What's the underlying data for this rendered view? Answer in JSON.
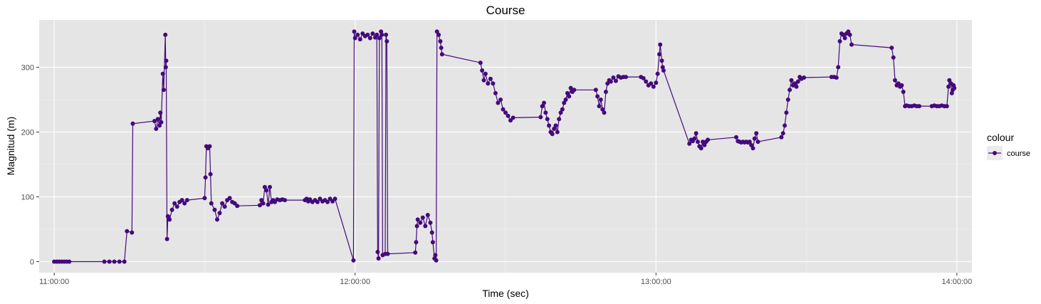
{
  "chart_data": {
    "type": "line",
    "title": "Course",
    "xlabel": "Time (sec)",
    "ylabel": "Magnitud (m)",
    "x_ticks": [
      "11:00:00",
      "12:00:00",
      "13:00:00",
      "14:00:00"
    ],
    "y_ticks": [
      0,
      100,
      200,
      300
    ],
    "xlim": [
      "10:57:00",
      "14:03:00"
    ],
    "ylim": [
      -17,
      373
    ],
    "grid": true,
    "legend": {
      "title": "colour",
      "position": "right"
    },
    "series": [
      {
        "name": "course",
        "color": "#440a7b",
        "points": [
          [
            "11:00:00",
            0
          ],
          [
            "11:00:30",
            0
          ],
          [
            "11:01:00",
            0
          ],
          [
            "11:01:30",
            0
          ],
          [
            "11:02:00",
            0
          ],
          [
            "11:02:30",
            0
          ],
          [
            "11:03:00",
            0
          ],
          [
            "11:10:00",
            0
          ],
          [
            "11:11:00",
            0
          ],
          [
            "11:12:00",
            0
          ],
          [
            "11:13:00",
            0
          ],
          [
            "11:14:00",
            0
          ],
          [
            "11:14:30",
            47
          ],
          [
            "11:15:30",
            45
          ],
          [
            "11:15:40",
            213
          ],
          [
            "11:20:00",
            217
          ],
          [
            "11:20:20",
            205
          ],
          [
            "11:20:40",
            220
          ],
          [
            "11:21:00",
            210
          ],
          [
            "11:21:10",
            230
          ],
          [
            "11:21:20",
            215
          ],
          [
            "11:21:40",
            290
          ],
          [
            "11:21:50",
            265
          ],
          [
            "11:22:10",
            350
          ],
          [
            "11:22:15",
            300
          ],
          [
            "11:22:20",
            310
          ],
          [
            "11:22:30",
            35
          ],
          [
            "11:22:40",
            70
          ],
          [
            "11:23:00",
            65
          ],
          [
            "11:23:30",
            80
          ],
          [
            "11:24:00",
            90
          ],
          [
            "11:24:30",
            85
          ],
          [
            "11:25:00",
            92
          ],
          [
            "11:25:30",
            95
          ],
          [
            "11:26:00",
            90
          ],
          [
            "11:26:30",
            95
          ],
          [
            "11:30:00",
            98
          ],
          [
            "11:30:10",
            130
          ],
          [
            "11:30:20",
            178
          ],
          [
            "11:30:40",
            175
          ],
          [
            "11:31:00",
            178
          ],
          [
            "11:31:10",
            135
          ],
          [
            "11:31:20",
            90
          ],
          [
            "11:32:00",
            80
          ],
          [
            "11:32:30",
            65
          ],
          [
            "11:33:00",
            75
          ],
          [
            "11:33:30",
            90
          ],
          [
            "11:34:00",
            85
          ],
          [
            "11:34:30",
            95
          ],
          [
            "11:35:00",
            98
          ],
          [
            "11:35:30",
            92
          ],
          [
            "11:36:00",
            90
          ],
          [
            "11:36:30",
            86
          ],
          [
            "11:41:00",
            87
          ],
          [
            "11:41:20",
            95
          ],
          [
            "11:41:40",
            90
          ],
          [
            "11:42:00",
            115
          ],
          [
            "11:42:20",
            110
          ],
          [
            "11:42:40",
            88
          ],
          [
            "11:43:00",
            115
          ],
          [
            "11:43:20",
            92
          ],
          [
            "11:43:40",
            95
          ],
          [
            "11:44:00",
            92
          ],
          [
            "11:44:30",
            96
          ],
          [
            "11:45:00",
            95
          ],
          [
            "11:45:30",
            96
          ],
          [
            "11:46:00",
            95
          ],
          [
            "11:50:00",
            95
          ],
          [
            "11:50:20",
            97
          ],
          [
            "11:50:40",
            93
          ],
          [
            "11:51:00",
            96
          ],
          [
            "11:51:30",
            92
          ],
          [
            "11:52:00",
            95
          ],
          [
            "11:52:30",
            92
          ],
          [
            "11:53:00",
            97
          ],
          [
            "11:53:30",
            93
          ],
          [
            "11:54:00",
            95
          ],
          [
            "11:54:30",
            92
          ],
          [
            "11:55:00",
            97
          ],
          [
            "11:55:30",
            93
          ],
          [
            "11:56:00",
            97
          ],
          [
            "11:59:40",
            2
          ],
          [
            "11:59:50",
            355
          ],
          [
            "12:00:00",
            345
          ],
          [
            "12:00:30",
            350
          ],
          [
            "12:01:00",
            343
          ],
          [
            "12:01:30",
            352
          ],
          [
            "12:02:00",
            348
          ],
          [
            "12:02:30",
            350
          ],
          [
            "12:03:00",
            345
          ],
          [
            "12:03:30",
            352
          ],
          [
            "12:04:00",
            346
          ],
          [
            "12:04:20",
            350
          ],
          [
            "12:04:30",
            15
          ],
          [
            "12:04:40",
            5
          ],
          [
            "12:04:50",
            345
          ],
          [
            "12:05:10",
            355
          ],
          [
            "12:05:20",
            350
          ],
          [
            "12:05:30",
            10
          ],
          [
            "12:06:00",
            12
          ],
          [
            "12:06:10",
            350
          ],
          [
            "12:06:20",
            340
          ],
          [
            "12:06:30",
            12
          ],
          [
            "12:12:00",
            14
          ],
          [
            "12:12:10",
            30
          ],
          [
            "12:12:20",
            55
          ],
          [
            "12:12:30",
            65
          ],
          [
            "12:13:00",
            60
          ],
          [
            "12:13:30",
            68
          ],
          [
            "12:14:00",
            55
          ],
          [
            "12:14:30",
            72
          ],
          [
            "12:15:00",
            60
          ],
          [
            "12:15:20",
            45
          ],
          [
            "12:15:30",
            30
          ],
          [
            "12:15:50",
            5
          ],
          [
            "12:16:00",
            10
          ],
          [
            "12:16:10",
            2
          ],
          [
            "12:16:20",
            355
          ],
          [
            "12:16:40",
            350
          ],
          [
            "12:17:00",
            340
          ],
          [
            "12:17:10",
            330
          ],
          [
            "12:17:20",
            320
          ],
          [
            "12:25:00",
            307
          ],
          [
            "12:25:20",
            295
          ],
          [
            "12:25:40",
            280
          ],
          [
            "12:26:00",
            290
          ],
          [
            "12:26:30",
            275
          ],
          [
            "12:27:00",
            282
          ],
          [
            "12:27:30",
            275
          ],
          [
            "12:28:00",
            260
          ],
          [
            "12:28:30",
            245
          ],
          [
            "12:29:00",
            250
          ],
          [
            "12:29:30",
            235
          ],
          [
            "12:30:00",
            230
          ],
          [
            "12:30:30",
            225
          ],
          [
            "12:31:00",
            218
          ],
          [
            "12:31:30",
            222
          ],
          [
            "12:37:00",
            223
          ],
          [
            "12:37:20",
            240
          ],
          [
            "12:37:40",
            245
          ],
          [
            "12:38:00",
            230
          ],
          [
            "12:38:20",
            220
          ],
          [
            "12:38:40",
            210
          ],
          [
            "12:39:00",
            200
          ],
          [
            "12:39:20",
            197
          ],
          [
            "12:39:40",
            205
          ],
          [
            "12:40:00",
            210
          ],
          [
            "12:40:20",
            200
          ],
          [
            "12:40:40",
            220
          ],
          [
            "12:41:00",
            230
          ],
          [
            "12:41:20",
            235
          ],
          [
            "12:41:40",
            245
          ],
          [
            "12:42:00",
            250
          ],
          [
            "12:42:20",
            260
          ],
          [
            "12:42:40",
            255
          ],
          [
            "12:43:00",
            268
          ],
          [
            "12:43:20",
            262
          ],
          [
            "12:43:40",
            265
          ],
          [
            "12:48:00",
            265
          ],
          [
            "12:48:20",
            255
          ],
          [
            "12:48:40",
            240
          ],
          [
            "12:49:00",
            250
          ],
          [
            "12:49:20",
            235
          ],
          [
            "12:49:40",
            230
          ],
          [
            "12:50:00",
            262
          ],
          [
            "12:50:20",
            275
          ],
          [
            "12:50:40",
            280
          ],
          [
            "12:51:00",
            278
          ],
          [
            "12:51:30",
            284
          ],
          [
            "12:52:00",
            279
          ],
          [
            "12:52:30",
            286
          ],
          [
            "12:53:00",
            284
          ],
          [
            "12:53:30",
            285
          ],
          [
            "12:54:00",
            285
          ],
          [
            "12:57:00",
            285
          ],
          [
            "12:57:30",
            283
          ],
          [
            "12:58:00",
            278
          ],
          [
            "12:58:30",
            272
          ],
          [
            "12:59:00",
            275
          ],
          [
            "12:59:30",
            270
          ],
          [
            "13:00:00",
            276
          ],
          [
            "13:00:20",
            290
          ],
          [
            "13:00:40",
            320
          ],
          [
            "13:00:50",
            335
          ],
          [
            "13:01:10",
            310
          ],
          [
            "13:01:20",
            300
          ],
          [
            "13:01:30",
            295
          ],
          [
            "13:06:40",
            182
          ],
          [
            "13:07:00",
            188
          ],
          [
            "13:07:20",
            186
          ],
          [
            "13:07:40",
            190
          ],
          [
            "13:08:00",
            198
          ],
          [
            "13:08:20",
            185
          ],
          [
            "13:08:40",
            178
          ],
          [
            "13:09:00",
            175
          ],
          [
            "13:09:20",
            185
          ],
          [
            "13:09:40",
            180
          ],
          [
            "13:10:00",
            185
          ],
          [
            "13:10:20",
            188
          ],
          [
            "13:16:00",
            192
          ],
          [
            "13:16:20",
            186
          ],
          [
            "13:16:40",
            185
          ],
          [
            "13:17:00",
            184
          ],
          [
            "13:17:20",
            185
          ],
          [
            "13:17:40",
            184
          ],
          [
            "13:18:00",
            185
          ],
          [
            "13:18:20",
            184
          ],
          [
            "13:18:40",
            185
          ],
          [
            "13:19:00",
            180
          ],
          [
            "13:19:20",
            175
          ],
          [
            "13:19:40",
            190
          ],
          [
            "13:20:00",
            198
          ],
          [
            "13:20:20",
            185
          ],
          [
            "13:25:00",
            192
          ],
          [
            "13:25:20",
            198
          ],
          [
            "13:25:40",
            210
          ],
          [
            "13:26:00",
            230
          ],
          [
            "13:26:20",
            250
          ],
          [
            "13:26:40",
            265
          ],
          [
            "13:27:00",
            280
          ],
          [
            "13:27:20",
            272
          ],
          [
            "13:27:40",
            275
          ],
          [
            "13:28:00",
            270
          ],
          [
            "13:28:20",
            278
          ],
          [
            "13:28:40",
            285
          ],
          [
            "13:29:00",
            282
          ],
          [
            "13:29:30",
            284
          ],
          [
            "13:35:00",
            285
          ],
          [
            "13:35:30",
            285
          ],
          [
            "13:36:00",
            284
          ],
          [
            "13:36:20",
            300
          ],
          [
            "13:36:40",
            340
          ],
          [
            "13:37:00",
            352
          ],
          [
            "13:37:20",
            350
          ],
          [
            "13:37:40",
            345
          ],
          [
            "13:38:00",
            352
          ],
          [
            "13:38:20",
            355
          ],
          [
            "13:38:40",
            350
          ],
          [
            "13:39:00",
            335
          ],
          [
            "13:47:00",
            330
          ],
          [
            "13:47:20",
            315
          ],
          [
            "13:47:40",
            280
          ],
          [
            "13:48:00",
            272
          ],
          [
            "13:48:20",
            275
          ],
          [
            "13:48:40",
            270
          ],
          [
            "13:49:00",
            272
          ],
          [
            "13:49:20",
            262
          ],
          [
            "13:49:40",
            240
          ],
          [
            "13:50:00",
            241
          ],
          [
            "13:50:30",
            240
          ],
          [
            "13:51:00",
            240
          ],
          [
            "13:51:30",
            241
          ],
          [
            "13:52:00",
            240
          ],
          [
            "13:52:30",
            240
          ],
          [
            "13:55:00",
            240
          ],
          [
            "13:55:30",
            241
          ],
          [
            "13:56:00",
            240
          ],
          [
            "13:56:30",
            240
          ],
          [
            "13:57:00",
            241
          ],
          [
            "13:57:30",
            240
          ],
          [
            "13:58:00",
            240
          ],
          [
            "13:58:20",
            270
          ],
          [
            "13:58:30",
            280
          ],
          [
            "13:58:50",
            275
          ],
          [
            "13:59:00",
            260
          ],
          [
            "13:59:10",
            265
          ],
          [
            "13:59:20",
            272
          ],
          [
            "13:59:30",
            268
          ]
        ]
      }
    ]
  }
}
